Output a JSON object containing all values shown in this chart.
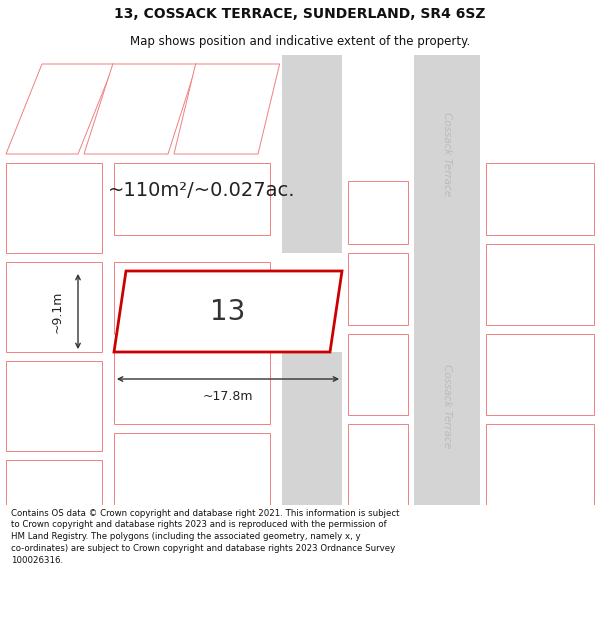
{
  "title_line1": "13, COSSACK TERRACE, SUNDERLAND, SR4 6SZ",
  "title_line2": "Map shows position and indicative extent of the property.",
  "footer_text": "Contains OS data © Crown copyright and database right 2021. This information is subject to Crown copyright and database rights 2023 and is reproduced with the permission of HM Land Registry. The polygons (including the associated geometry, namely x, y co-ordinates) are subject to Crown copyright and database rights 2023 Ordnance Survey 100026316.",
  "area_label": "~110m²/~0.027ac.",
  "number_label": "13",
  "width_label": "~17.8m",
  "height_label": "~9.1m",
  "bg_color": "#f0f0f0",
  "road_color": "#d8d8d8",
  "plot_outline_color": "#cc0000",
  "road_label_color": "#bbbbbb",
  "pink_line_color": "#f08080",
  "dim_color": "#333333",
  "title_fontsize": 10,
  "subtitle_fontsize": 8.5,
  "footer_fontsize": 6.2,
  "area_fontsize": 14,
  "number_fontsize": 20,
  "dim_fontsize": 9
}
